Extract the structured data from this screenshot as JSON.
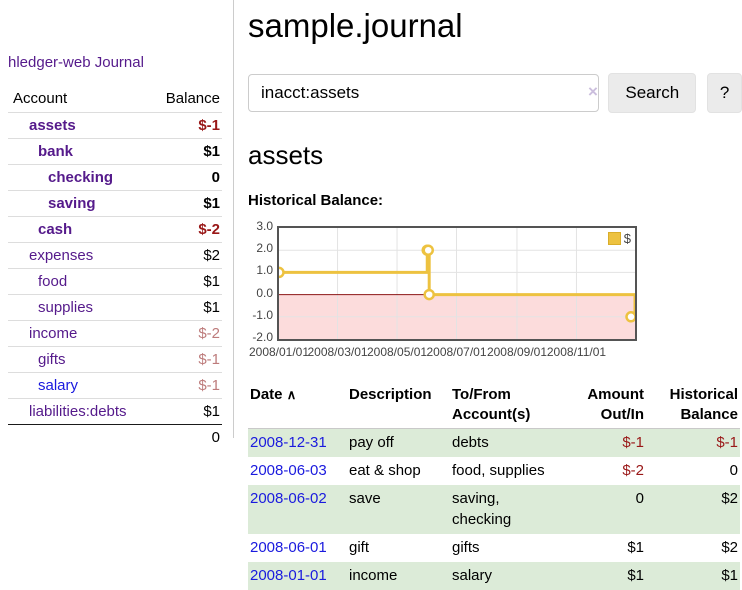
{
  "app": {
    "brand": "hledger-web",
    "nav_journal": "Journal"
  },
  "sidebar": {
    "headers": {
      "account": "Account",
      "balance": "Balance"
    },
    "accounts": [
      {
        "name": "assets",
        "balance": "$-1",
        "indent": 1,
        "bold": true,
        "balance_style": "negative"
      },
      {
        "name": "bank",
        "balance": "$1",
        "indent": 2,
        "bold": true,
        "balance_style": "normal"
      },
      {
        "name": "checking",
        "balance": "0",
        "indent": 3,
        "bold": true,
        "balance_style": "normal"
      },
      {
        "name": "saving",
        "balance": "$1",
        "indent": 3,
        "bold": true,
        "balance_style": "normal"
      },
      {
        "name": "cash",
        "balance": "$-2",
        "indent": 2,
        "bold": true,
        "balance_style": "negative"
      },
      {
        "name": "expenses",
        "balance": "$2",
        "indent": 1,
        "bold": false,
        "balance_style": "normal"
      },
      {
        "name": "food",
        "balance": "$1",
        "indent": 2,
        "bold": false,
        "balance_style": "normal"
      },
      {
        "name": "supplies",
        "balance": "$1",
        "indent": 2,
        "bold": false,
        "balance_style": "normal"
      },
      {
        "name": "income",
        "balance": "$-2",
        "indent": 1,
        "bold": false,
        "balance_style": "negative-faint"
      },
      {
        "name": "gifts",
        "balance": "$-1",
        "indent": 2,
        "bold": false,
        "balance_style": "negative-faint"
      },
      {
        "name": "salary",
        "balance": "$-1",
        "indent": 2,
        "bold": false,
        "balance_style": "negative-faint"
      },
      {
        "name": "liabilities:debts",
        "balance": "$1",
        "indent": 1,
        "bold": false,
        "balance_style": "normal"
      }
    ],
    "total": "0"
  },
  "header": {
    "title": "sample.journal"
  },
  "search": {
    "value": "inacct:assets",
    "clear_icon": "×",
    "button_label": "Search",
    "help_label": "?"
  },
  "account_page": {
    "heading": "assets",
    "chart_title": "Historical Balance:"
  },
  "chart_data": {
    "type": "line",
    "title": "Historical Balance:",
    "style": "steps",
    "series": [
      {
        "name": "$",
        "color": "#edc240",
        "points": [
          [
            "2008-01-01",
            1
          ],
          [
            "2008-06-01",
            2
          ],
          [
            "2008-06-02",
            2
          ],
          [
            "2008-06-03",
            0
          ],
          [
            "2008-12-31",
            -1
          ]
        ]
      }
    ],
    "x_range": [
      "2008-01-01",
      "2008-12-31"
    ],
    "ylim": [
      -2,
      3
    ],
    "yticks": [
      3.0,
      2.0,
      1.0,
      0.0,
      -1.0,
      -2.0
    ],
    "ytick_labels": [
      "3.0",
      "2.0",
      "1.0",
      "0.0",
      "-1.0",
      "-2.0"
    ],
    "xticks": [
      "2008-01-01",
      "2008-03-01",
      "2008-05-01",
      "2008-07-01",
      "2008-09-01",
      "2008-11-01"
    ],
    "xtick_labels": [
      "2008/01/01",
      "2008/03/01",
      "2008/05/01",
      "2008/07/01",
      "2008/09/01",
      "2008/11/01"
    ],
    "grid": true,
    "legend_position": "top-right",
    "legend_label": "$",
    "colors": {
      "negative_region": "#fcdcdc",
      "zero_line": "#8b1414",
      "gridline": "#e3e3e3",
      "plot_border": "#545454",
      "point_fill": "#ffffff"
    }
  },
  "register": {
    "headers": {
      "date": "Date",
      "sort_icon": "∧",
      "description": "Description",
      "accounts": "To/From Account(s)",
      "amount": "Amount Out/In",
      "balance": "Historical Balance"
    },
    "rows": [
      {
        "date": "2008-12-31",
        "description": "pay off",
        "accounts": "debts",
        "amount": "$-1",
        "balance": "$-1",
        "amount_negative": true,
        "balance_negative": true
      },
      {
        "date": "2008-06-03",
        "description": "eat & shop",
        "accounts": "food, supplies",
        "amount": "$-2",
        "balance": "0",
        "amount_negative": true,
        "balance_negative": false
      },
      {
        "date": "2008-06-02",
        "description": "save",
        "accounts": "saving, checking",
        "amount": "0",
        "balance": "$2",
        "amount_negative": false,
        "balance_negative": false
      },
      {
        "date": "2008-06-01",
        "description": "gift",
        "accounts": "gifts",
        "amount": "$1",
        "balance": "$2",
        "amount_negative": false,
        "balance_negative": false
      },
      {
        "date": "2008-01-01",
        "description": "income",
        "accounts": "salary",
        "amount": "$1",
        "balance": "$1",
        "amount_negative": false,
        "balance_negative": false
      }
    ]
  }
}
